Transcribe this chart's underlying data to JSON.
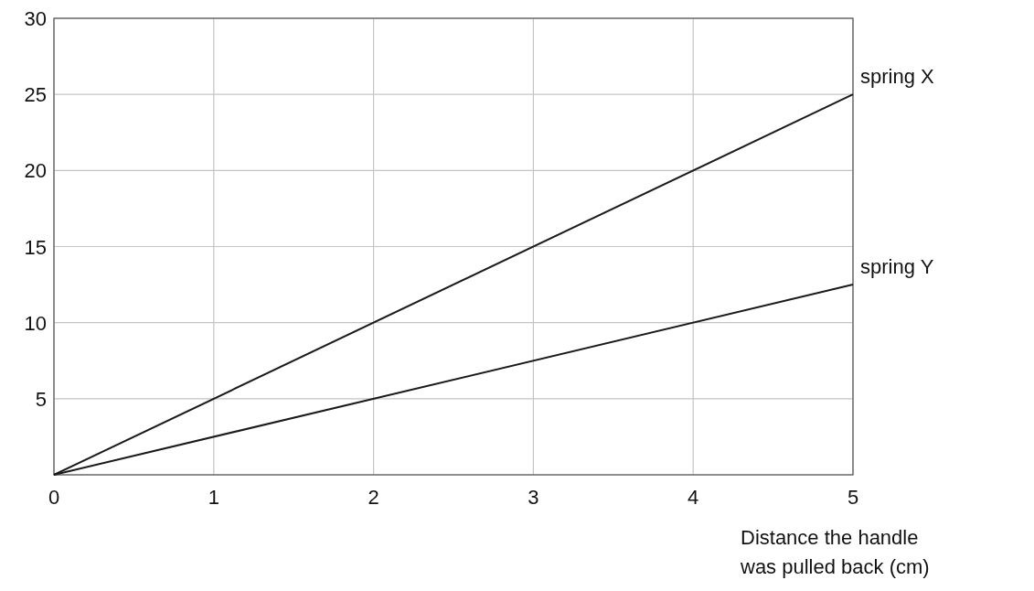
{
  "chart_data": {
    "type": "line",
    "xlabel": "Distance the handle was pulled back (cm)",
    "xlim": [
      0,
      5
    ],
    "xticks": [
      0,
      1,
      2,
      3,
      4,
      5
    ],
    "ylim": [
      0,
      30
    ],
    "yticks": [
      {
        "value": 0,
        "label": null
      },
      5,
      10,
      15,
      20,
      25,
      30
    ],
    "grid": true,
    "marker": "none",
    "line_style": "solid",
    "x": [
      0,
      5
    ],
    "series": [
      {
        "name": "spring X",
        "color": "#1a1a1a",
        "values": [
          0,
          25
        ]
      },
      {
        "name": "spring Y",
        "color": "#1a1a1a",
        "values": [
          0,
          12.5
        ]
      }
    ]
  }
}
